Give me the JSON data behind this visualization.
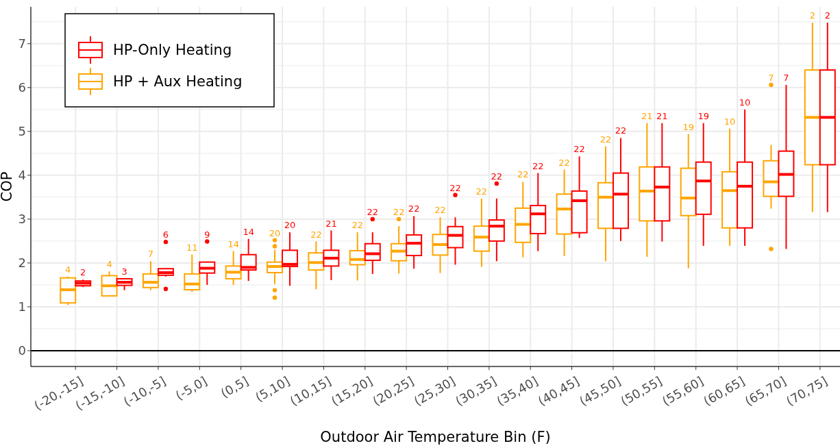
{
  "chart_data": {
    "type": "box",
    "xlabel": "Outdoor Air Temperature Bin (F)",
    "ylabel": "COP",
    "categories": [
      "(-20,-15]",
      "(-15,-10]",
      "(-10,-5]",
      "(-5,0]",
      "(0,5]",
      "(5,10]",
      "(10,15]",
      "(15,20]",
      "(20,25]",
      "(25,30]",
      "(30,35]",
      "(35,40]",
      "(40,45]",
      "(45,50]",
      "(50,55]",
      "(55,60]",
      "(60,65]",
      "(65,70]",
      "(70,75]"
    ],
    "ylim": [
      -0.36,
      7.84
    ],
    "yticks": [
      0,
      1,
      2,
      3,
      4,
      5,
      6,
      7
    ],
    "grid": true,
    "legend": "top left",
    "ref_lines": [
      {
        "axis": "y",
        "value": 0,
        "color": "#000000"
      }
    ],
    "series": [
      {
        "name": "HP + Aux Heating",
        "color": "#ffa500",
        "value_labels": [
          "4",
          "4",
          "7",
          "11",
          "14",
          "20",
          "22",
          "22",
          "22",
          "22",
          "22",
          "22",
          "22",
          "22",
          "21",
          "19",
          "10",
          "7",
          "2"
        ],
        "boxes": [
          {
            "low": 1.04,
            "q1": 1.09,
            "median": 1.39,
            "q3": 1.66,
            "high": 1.69
          },
          {
            "low": 1.25,
            "q1": 1.25,
            "median": 1.48,
            "q3": 1.71,
            "high": 1.81
          },
          {
            "low": 1.38,
            "q1": 1.44,
            "median": 1.56,
            "q3": 1.75,
            "high": 2.04
          },
          {
            "low": 1.34,
            "q1": 1.39,
            "median": 1.52,
            "q3": 1.75,
            "high": 2.19
          },
          {
            "low": 1.5,
            "q1": 1.64,
            "median": 1.79,
            "q3": 1.93,
            "high": 2.27
          },
          {
            "low": 1.52,
            "q1": 1.78,
            "median": 1.92,
            "q3": 2.02,
            "high": 2.3,
            "outliers": [
              2.52,
              2.38,
              1.38,
              1.21
            ]
          },
          {
            "low": 1.4,
            "q1": 1.84,
            "median": 2.01,
            "q3": 2.23,
            "high": 2.49
          },
          {
            "low": 1.6,
            "q1": 1.96,
            "median": 2.08,
            "q3": 2.28,
            "high": 2.7
          },
          {
            "low": 1.76,
            "q1": 2.05,
            "median": 2.27,
            "q3": 2.44,
            "high": 2.84,
            "outliers": [
              3.0
            ]
          },
          {
            "low": 1.77,
            "q1": 2.18,
            "median": 2.42,
            "q3": 2.65,
            "high": 3.04
          },
          {
            "low": 1.91,
            "q1": 2.27,
            "median": 2.59,
            "q3": 2.84,
            "high": 3.47
          },
          {
            "low": 2.13,
            "q1": 2.47,
            "median": 2.88,
            "q3": 3.25,
            "high": 3.85
          },
          {
            "low": 2.16,
            "q1": 2.66,
            "median": 3.23,
            "q3": 3.57,
            "high": 4.13
          },
          {
            "low": 2.04,
            "q1": 2.79,
            "median": 3.5,
            "q3": 3.83,
            "high": 4.66
          },
          {
            "low": 2.14,
            "q1": 2.96,
            "median": 3.64,
            "q3": 4.19,
            "high": 5.19
          },
          {
            "low": 1.88,
            "q1": 3.08,
            "median": 3.48,
            "q3": 4.16,
            "high": 4.94
          },
          {
            "low": 2.39,
            "q1": 2.8,
            "median": 3.65,
            "q3": 4.08,
            "high": 5.06
          },
          {
            "low": 3.24,
            "q1": 3.52,
            "median": 3.85,
            "q3": 4.33,
            "high": 4.69,
            "outliers": [
              6.06,
              2.32
            ]
          },
          {
            "low": 3.16,
            "q1": 4.24,
            "median": 5.32,
            "q3": 6.4,
            "high": 7.48
          }
        ]
      },
      {
        "name": "HP-Only Heating",
        "color": "#ff0000",
        "value_labels": [
          "2",
          "3",
          "6",
          "9",
          "14",
          "20",
          "21",
          "22",
          "22",
          "22",
          "22",
          "22",
          "22",
          "22",
          "21",
          "19",
          "10",
          "7",
          "2"
        ],
        "boxes": [
          {
            "low": 1.45,
            "q1": 1.48,
            "median": 1.54,
            "q3": 1.59,
            "high": 1.62
          },
          {
            "low": 1.38,
            "q1": 1.49,
            "median": 1.56,
            "q3": 1.64,
            "high": 1.64
          },
          {
            "low": 1.69,
            "q1": 1.72,
            "median": 1.78,
            "q3": 1.87,
            "high": 1.87,
            "outliers": [
              2.48,
              1.41
            ]
          },
          {
            "low": 1.5,
            "q1": 1.77,
            "median": 1.88,
            "q3": 2.02,
            "high": 2.02,
            "outliers": [
              2.49
            ]
          },
          {
            "low": 1.59,
            "q1": 1.84,
            "median": 1.9,
            "q3": 2.19,
            "high": 2.55
          },
          {
            "low": 1.48,
            "q1": 1.92,
            "median": 1.97,
            "q3": 2.29,
            "high": 2.7
          },
          {
            "low": 1.61,
            "q1": 1.93,
            "median": 2.11,
            "q3": 2.29,
            "high": 2.74
          },
          {
            "low": 1.75,
            "q1": 2.06,
            "median": 2.21,
            "q3": 2.44,
            "high": 2.7,
            "outliers": [
              3.0
            ]
          },
          {
            "low": 1.87,
            "q1": 2.17,
            "median": 2.45,
            "q3": 2.64,
            "high": 3.07
          },
          {
            "low": 1.96,
            "q1": 2.35,
            "median": 2.63,
            "q3": 2.83,
            "high": 3.04,
            "outliers": [
              3.55
            ]
          },
          {
            "low": 2.04,
            "q1": 2.5,
            "median": 2.84,
            "q3": 2.98,
            "high": 3.47,
            "outliers": [
              3.81
            ]
          },
          {
            "low": 2.27,
            "q1": 2.67,
            "median": 3.12,
            "q3": 3.31,
            "high": 4.05
          },
          {
            "low": 2.57,
            "q1": 2.69,
            "median": 3.42,
            "q3": 3.64,
            "high": 4.43
          },
          {
            "low": 2.5,
            "q1": 2.79,
            "median": 3.57,
            "q3": 4.05,
            "high": 4.85
          },
          {
            "low": 2.49,
            "q1": 2.96,
            "median": 3.73,
            "q3": 4.19,
            "high": 5.19
          },
          {
            "low": 2.39,
            "q1": 3.11,
            "median": 3.87,
            "q3": 4.3,
            "high": 5.19
          },
          {
            "low": 2.39,
            "q1": 2.8,
            "median": 3.75,
            "q3": 4.3,
            "high": 5.5
          },
          {
            "low": 2.32,
            "q1": 3.52,
            "median": 4.02,
            "q3": 4.55,
            "high": 6.06
          },
          {
            "low": 3.16,
            "q1": 4.24,
            "median": 5.32,
            "q3": 6.4,
            "high": 7.48
          }
        ]
      }
    ]
  }
}
